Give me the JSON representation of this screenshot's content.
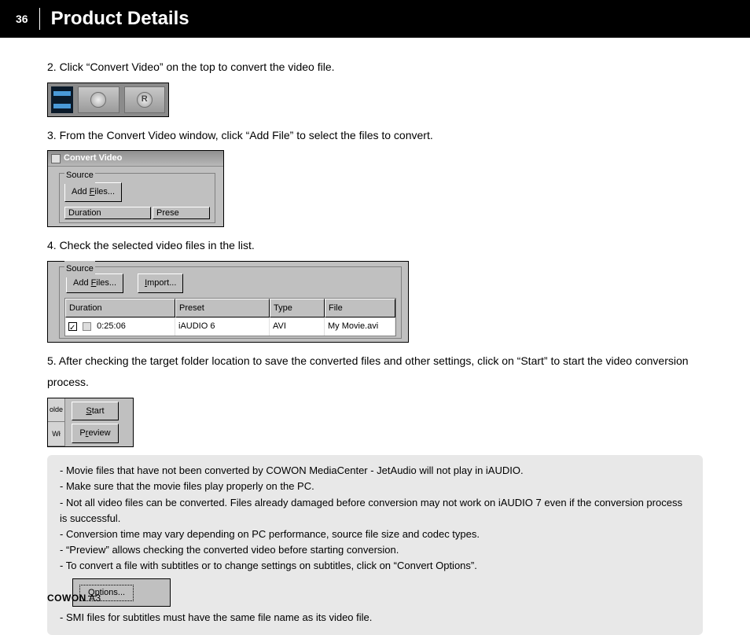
{
  "header": {
    "page_num": "36",
    "title": "Product Details"
  },
  "steps": {
    "s2": "2. Click “Convert Video” on the top to convert the video file.",
    "s3": "3.  From the Convert Video window, click “Add File” to select the files to convert.",
    "s4": "4.  Check the selected video files in the list.",
    "s5": "5.  After checking the target folder location to save the converted files and other settings, click on “Start” to start the video conversion process."
  },
  "shot_a": {
    "button_label": "R"
  },
  "shot_b": {
    "win_title": "Convert Video",
    "group_label": "Source",
    "add_files_label": "Add Files...",
    "col_duration": "Duration",
    "col_preset": "Prese"
  },
  "shot_c": {
    "group_label": "Source",
    "add_files_label": "Add Files...",
    "import_label": "Import...",
    "hdr_duration": "Duration",
    "hdr_preset": "Preset",
    "hdr_type": "Type",
    "hdr_file": "File",
    "row_duration": "0:25:06",
    "row_preset": "iAUDIO 6",
    "row_type": "AVI",
    "row_file": "My Movie.avi"
  },
  "shot_d": {
    "left1": "olde",
    "left2": "Wł",
    "start_label": "Start",
    "preview_label": "Preview"
  },
  "notes": {
    "l1": "- Movie files that have not been converted by COWON MediaCenter - JetAudio will not play in iAUDIO.",
    "l2": "- Make sure that the movie files play properly on the PC.",
    "l3": "- Not all video files can be converted. Files already damaged before conversion may not work on iAUDIO 7 even if the conversion process is successful.",
    "l4": "- Conversion time may vary depending on PC performance, source file size and codec types.",
    "l5": "- “Preview” allows checking the converted video before starting conversion.",
    "l6": "- To convert a file with subtitles or to change settings on subtitles, click on “Convert Options”.",
    "l7": "- SMI files for subtitles must have the same file name as its video file."
  },
  "shot_e": {
    "options_label": "Options..."
  },
  "footer": {
    "brand": "COWON",
    "model": " A3"
  }
}
